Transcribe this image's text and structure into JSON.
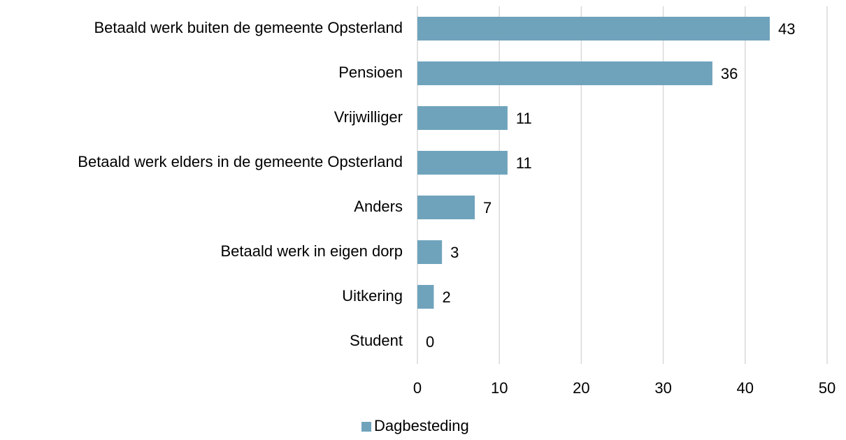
{
  "chart_data": {
    "type": "barh",
    "categories": [
      "Betaald werk buiten de gemeente Opsterland",
      "Pensioen",
      "Vrijwilliger",
      "Betaald werk elders in de gemeente Opsterland",
      "Anders",
      "Betaald werk in eigen dorp",
      "Uitkering",
      "Student"
    ],
    "series": [
      {
        "name": "Dagbesteding",
        "color": "#6fa3bc",
        "values": [
          43,
          36,
          11,
          11,
          7,
          3,
          2,
          0
        ]
      }
    ],
    "xlim": [
      0,
      50
    ],
    "xticks": [
      0,
      10,
      20,
      30,
      40,
      50
    ],
    "grid": true,
    "legend": "bottom"
  }
}
